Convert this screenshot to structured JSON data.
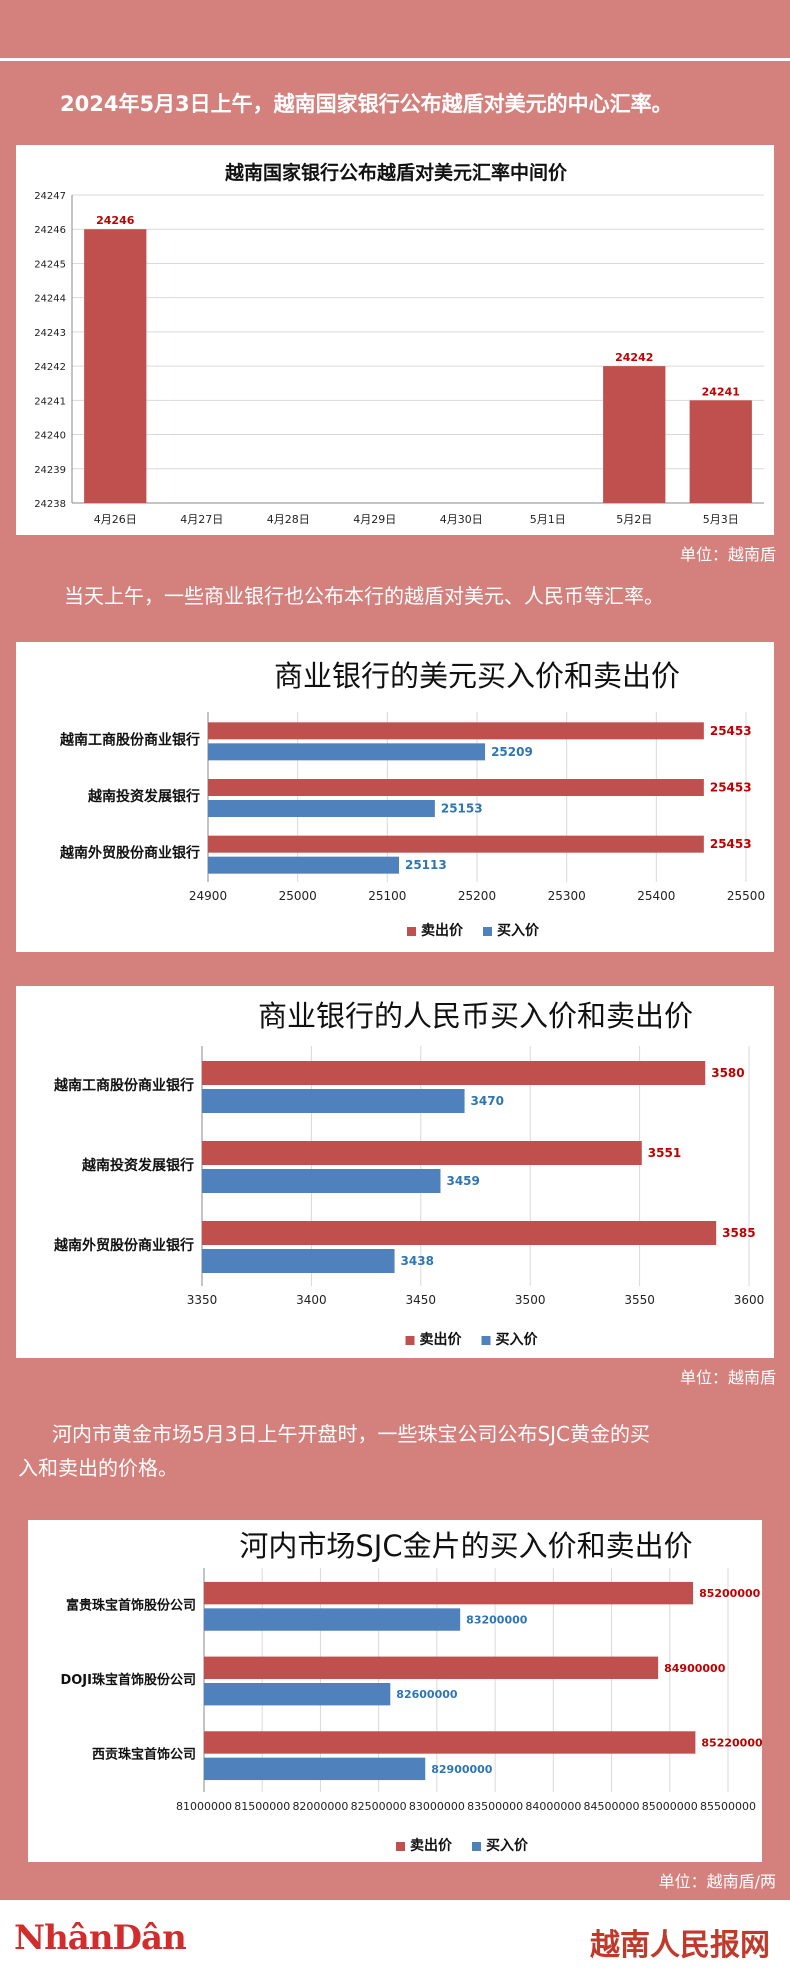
{
  "intro_text": "2024年5月3日上午，越南国家银行公布越盾对美元的中心汇率。",
  "middle_text": "当天上午，一些商业银行也公布本行的越盾对美元、人民币等汇率。",
  "gold_text_line1": "河内市黄金市场5月3日上午开盘时，一些珠宝公司公布SJC黄金的买",
  "gold_text_line2": "入和卖出的价格。",
  "unit_1": "单位：越南盾",
  "unit_2": "单位：越南盾",
  "unit_3": "单位：越南盾/两",
  "footer": {
    "logo_left": "NhânDân",
    "logo_right": "越南人民报网"
  },
  "colors": {
    "sell": "#c0504d",
    "buy": "#4f81bd",
    "label_sell": "#c00000",
    "label_buy": "#2e75b6"
  },
  "chart_data": [
    {
      "type": "bar",
      "title": "越南国家银行公布越盾对美元汇率中间价",
      "categories": [
        "4月26日",
        "4月27日",
        "4月28日",
        "4月29日",
        "4月30日",
        "5月1日",
        "5月2日",
        "5月3日"
      ],
      "values": [
        24246,
        null,
        null,
        null,
        null,
        null,
        24242,
        24241
      ],
      "value_labels": [
        "24246",
        "",
        "",
        "",
        "",
        "",
        "24242",
        "24241"
      ],
      "ylim": [
        24238,
        24247
      ],
      "yticks": [
        "24238",
        "24239",
        "24240",
        "24241",
        "24242",
        "24243",
        "24244",
        "24245",
        "24246",
        "24247"
      ],
      "grid": true
    },
    {
      "type": "bar",
      "orientation": "horizontal",
      "title": "商业银行的美元买入价和卖出价",
      "categories": [
        "越南工商股份商业银行",
        "越南投资发展银行",
        "越南外贸股份商业银行"
      ],
      "series": [
        {
          "name": "卖出价",
          "values": [
            25453,
            25453,
            25453
          ],
          "labels": [
            "25453",
            "25453",
            "25453"
          ]
        },
        {
          "name": "买入价",
          "values": [
            25209,
            25153,
            25113
          ],
          "labels": [
            "25209",
            "25153",
            "25113"
          ]
        }
      ],
      "xlim": [
        24900,
        25500
      ],
      "xticks": [
        "24900",
        "25000",
        "25100",
        "25200",
        "25300",
        "25400",
        "25500"
      ],
      "legend": "bottom"
    },
    {
      "type": "bar",
      "orientation": "horizontal",
      "title": "商业银行的人民币买入价和卖出价",
      "categories": [
        "越南工商股份商业银行",
        "越南投资发展银行",
        "越南外贸股份商业银行"
      ],
      "series": [
        {
          "name": "卖出价",
          "values": [
            3580,
            3551,
            3585
          ],
          "labels": [
            "3580",
            "3551",
            "3585"
          ]
        },
        {
          "name": "买入价",
          "values": [
            3470,
            3459,
            3438
          ],
          "labels": [
            "3470",
            "3459",
            "3438"
          ]
        }
      ],
      "xlim": [
        3350,
        3600
      ],
      "xticks": [
        "3350",
        "3400",
        "3450",
        "3500",
        "3550",
        "3600"
      ],
      "legend": "bottom"
    },
    {
      "type": "bar",
      "orientation": "horizontal",
      "title": "河内市场SJC金片的买入价和卖出价",
      "categories": [
        "富贵珠宝首饰股份公司",
        "DOJI珠宝首饰股份公司",
        "西贡珠宝首饰公司"
      ],
      "series": [
        {
          "name": "卖出价",
          "values": [
            85200000,
            84900000,
            85220000
          ],
          "labels": [
            "85200000",
            "84900000",
            "85220000"
          ]
        },
        {
          "name": "买入价",
          "values": [
            83200000,
            82600000,
            82900000
          ],
          "labels": [
            "83200000",
            "82600000",
            "82900000"
          ]
        }
      ],
      "xlim": [
        81000000,
        85500000
      ],
      "xticks": [
        "81000000",
        "81500000",
        "82000000",
        "82500000",
        "83000000",
        "83500000",
        "84000000",
        "84500000",
        "85000000",
        "85500000"
      ],
      "legend": "bottom"
    }
  ]
}
